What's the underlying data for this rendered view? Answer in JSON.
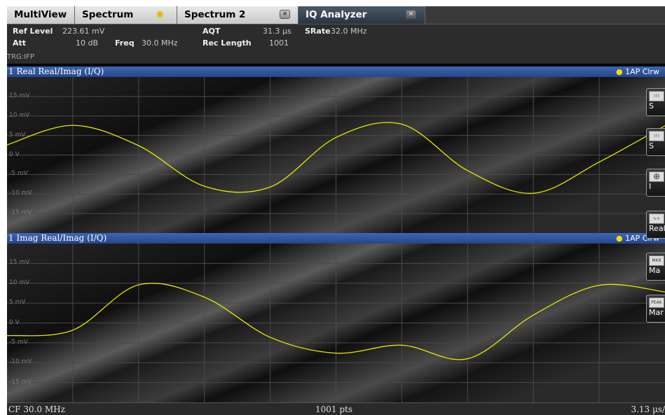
{
  "tabs": [
    {
      "label": "MultiView"
    },
    {
      "label": "Spectrum"
    },
    {
      "label": "Spectrum 2"
    },
    {
      "label": "IQ Analyzer"
    }
  ],
  "info": {
    "ref_level_label": "Ref Level",
    "ref_level_value": "223.61 mV",
    "att_label": "Att",
    "att_value": "10 dB",
    "freq_label": "Freq",
    "freq_value": "30.0 MHz",
    "aqt_label": "AQT",
    "aqt_value": "31.3 µs",
    "rec_length_label": "Rec Length",
    "rec_length_value": "1001",
    "srate_label": "SRate",
    "srate_value": "32.0 MHz",
    "trg": "TRG:IFP"
  },
  "windows": [
    {
      "title": "1 Real Real/Imag (I/Q)",
      "trace_label": "1AP Clrw",
      "y_labels": [
        "15 mV",
        "10 mV",
        "5 mV",
        "0 V",
        "-5 mV",
        "-10 mV",
        "-15 mV"
      ]
    },
    {
      "title": "1 Imag Real/Imag (I/Q)",
      "trace_label": "1AP Clrw",
      "y_labels": [
        "15 mV",
        "10 mV",
        "5 mV",
        "0 V",
        "-5 mV",
        "-10 mV",
        "-15 mV"
      ]
    }
  ],
  "softkeys": [
    {
      "icon": "spectrum-icon",
      "label": "S"
    },
    {
      "icon": "spectrum-icon",
      "label": "S"
    },
    {
      "icon": "crosshair-icon",
      "label": "I"
    },
    {
      "icon": "waveform-icon",
      "label": "Real"
    },
    {
      "icon": "MKR",
      "label": "Ma"
    },
    {
      "icon": "PEAK",
      "label": "Mar"
    }
  ],
  "status": {
    "center": "CF 30.0 MHz",
    "points": "1001 pts",
    "span": "3.13 µs/"
  },
  "colors": {
    "trace": "#e6e600",
    "title_bar": "#2f55a0",
    "grid": "#4a4a4a"
  },
  "chart_data": [
    {
      "type": "line",
      "title": "1 Real Real/Imag (I/Q)",
      "ylim": [
        -20,
        20
      ],
      "y_unit": "mV",
      "x_points": 1001,
      "x_per_div": "3.13 µs",
      "series": [
        {
          "name": "1AP Clrw",
          "x": [
            0,
            100,
            200,
            300,
            400,
            500,
            600,
            700,
            800,
            900,
            1000
          ],
          "y": [
            2.6,
            7.6,
            2.4,
            -8.0,
            -8.2,
            4.5,
            7.9,
            -4.0,
            -9.8,
            -1.8,
            7.5
          ]
        }
      ]
    },
    {
      "type": "line",
      "title": "1 Imag Real/Imag (I/Q)",
      "ylim": [
        -20,
        20
      ],
      "y_unit": "mV",
      "x_points": 1001,
      "x_per_div": "3.13 µs",
      "series": [
        {
          "name": "1AP Clrw",
          "x": [
            0,
            100,
            200,
            300,
            400,
            500,
            600,
            700,
            800,
            900,
            1000
          ],
          "y": [
            -3.2,
            -1.8,
            9.6,
            6.5,
            -3.6,
            -7.6,
            -5.6,
            -9.0,
            2.0,
            9.5,
            7.8
          ]
        }
      ]
    }
  ]
}
